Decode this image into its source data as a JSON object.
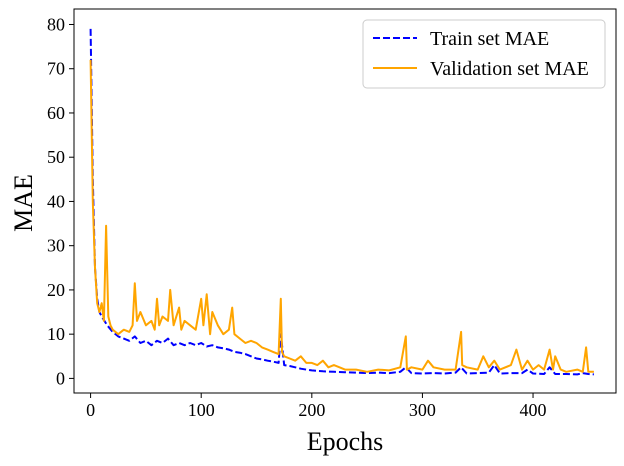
{
  "chart_data": {
    "type": "line",
    "xlabel": "Epochs",
    "ylabel": "MAE",
    "xlim": [
      -15,
      475
    ],
    "ylim": [
      -3.3,
      83.5
    ],
    "xticks": [
      0,
      100,
      200,
      300,
      400
    ],
    "yticks": [
      0,
      10,
      20,
      30,
      40,
      50,
      60,
      70,
      80
    ],
    "grid": false,
    "legend_position": "top-right",
    "series": [
      {
        "name": "Train set MAE",
        "color": "#0000ff",
        "style": "dashed",
        "x": [
          0,
          2,
          4,
          6,
          8,
          10,
          15,
          20,
          25,
          30,
          35,
          40,
          45,
          50,
          55,
          60,
          65,
          70,
          75,
          80,
          85,
          90,
          95,
          100,
          105,
          110,
          115,
          120,
          125,
          130,
          135,
          140,
          145,
          150,
          155,
          160,
          165,
          170,
          172,
          175,
          180,
          185,
          190,
          195,
          200,
          210,
          220,
          230,
          240,
          250,
          260,
          270,
          280,
          285,
          290,
          300,
          310,
          320,
          330,
          335,
          340,
          350,
          360,
          365,
          370,
          380,
          390,
          395,
          400,
          410,
          415,
          420,
          430,
          440,
          445,
          450,
          455
        ],
        "y": [
          79,
          45,
          25,
          18,
          15,
          14,
          12,
          10.5,
          9.5,
          9,
          8.5,
          9.5,
          8,
          8.5,
          7.5,
          8.5,
          8,
          9,
          7.5,
          8,
          7.5,
          8,
          7.5,
          8,
          7.2,
          7.5,
          7,
          6.8,
          6.5,
          6,
          5.8,
          5.5,
          5,
          4.5,
          4.3,
          4,
          3.8,
          3.5,
          10,
          3,
          2.8,
          2.5,
          2.2,
          2,
          1.8,
          1.6,
          1.5,
          1.4,
          1.3,
          1.2,
          1.3,
          1.2,
          1.5,
          2.5,
          1.2,
          1.1,
          1.2,
          1.1,
          1.3,
          2.5,
          1.1,
          1.2,
          1.3,
          3,
          1.1,
          1.2,
          1.2,
          2,
          1.1,
          1.0,
          2.5,
          1.0,
          1.0,
          0.9,
          1.2,
          1.0,
          0.9
        ]
      },
      {
        "name": "Validation set MAE",
        "color": "#ffa500",
        "style": "solid",
        "x": [
          0,
          2,
          4,
          6,
          8,
          10,
          12,
          14,
          16,
          18,
          20,
          25,
          30,
          35,
          38,
          40,
          42,
          45,
          50,
          55,
          58,
          60,
          62,
          65,
          70,
          72,
          75,
          80,
          82,
          85,
          90,
          95,
          100,
          102,
          105,
          108,
          110,
          115,
          120,
          125,
          128,
          130,
          135,
          140,
          145,
          150,
          155,
          160,
          165,
          170,
          172,
          173,
          175,
          180,
          185,
          190,
          195,
          200,
          205,
          210,
          215,
          220,
          225,
          230,
          240,
          250,
          260,
          270,
          280,
          285,
          286,
          290,
          300,
          305,
          310,
          320,
          330,
          335,
          336,
          340,
          350,
          355,
          360,
          365,
          370,
          380,
          385,
          390,
          395,
          400,
          405,
          410,
          415,
          418,
          420,
          425,
          430,
          440,
          445,
          448,
          450,
          455
        ],
        "y": [
          72,
          40,
          25,
          17,
          15,
          17,
          13,
          34.5,
          14,
          12,
          11,
          10,
          11,
          10.5,
          12,
          21.5,
          13,
          15,
          12,
          13,
          11,
          18,
          12,
          14,
          13,
          20,
          12,
          16,
          11,
          13,
          12,
          11,
          18,
          12,
          19,
          10,
          15,
          12,
          10,
          11,
          16,
          10,
          9,
          8,
          8.5,
          8,
          7,
          6.5,
          6,
          5.5,
          18,
          6,
          5,
          4.5,
          4,
          5,
          3.5,
          3.5,
          3,
          4,
          2.5,
          3,
          2.5,
          2,
          2,
          1.5,
          2,
          1.8,
          2.5,
          9.5,
          2,
          2.5,
          2,
          4,
          2.5,
          2,
          2,
          10.5,
          3,
          2.5,
          2,
          5,
          2.5,
          4,
          2,
          3,
          6.5,
          2,
          4,
          2,
          3,
          2,
          6.5,
          2,
          5,
          2,
          1.5,
          2,
          1.5,
          7,
          1.5,
          1.5
        ]
      }
    ]
  }
}
